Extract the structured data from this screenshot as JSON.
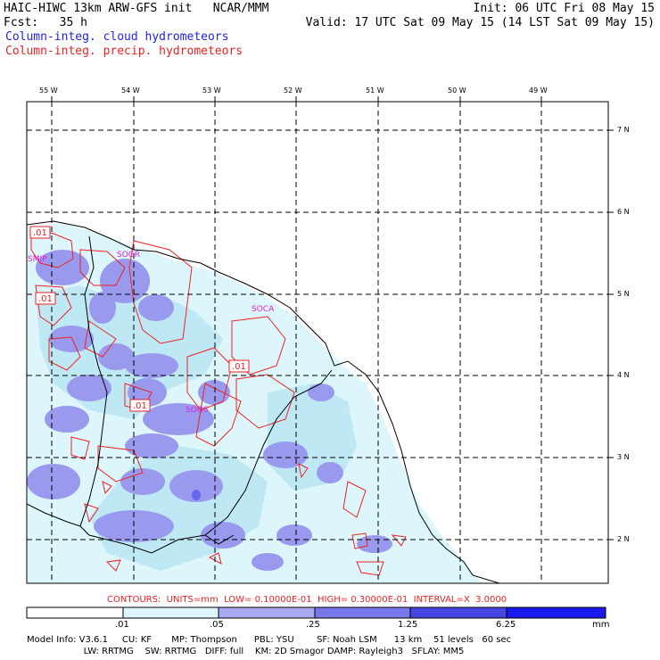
{
  "header": {
    "title": "HAIC-HIWC 13km ARW-GFS init   NCAR/MMM",
    "init": "Init: 06 UTC Fri 08 May 15",
    "fcst": "Fcst:   35 h",
    "valid": "Valid: 17 UTC Sat 09 May 15 (14 LST Sat 09 May 15)",
    "field1": "Column-integ. cloud hydrometeors",
    "field2": "Column-integ. precip. hydrometeors"
  },
  "colors": {
    "field1": "#2222ee",
    "field2": "#ee2222",
    "coast": "#000000",
    "contour": "#ee2222",
    "station": "#dd22dd",
    "shade_light": "#ddf6fb",
    "shade_mid": "#bfe8f5",
    "shade_purple": "#9999ee",
    "shade_dark": "#6666ee"
  },
  "map": {
    "lon_labels": [
      "55 W",
      "54 W",
      "53 W",
      "52 W",
      "51 W",
      "50 W",
      "49 W"
    ],
    "lat_labels": [
      "7 N",
      "6 N",
      "5 N",
      "4 N",
      "3 N",
      "2 N"
    ],
    "stations": [
      {
        "name": "SMJP",
        "lon": -54.96,
        "lat": 5.44
      },
      {
        "name": "SOGR",
        "lon": -53.99,
        "lat": 5.47
      },
      {
        "name": "SOCA",
        "lon": -52.36,
        "lat": 4.82
      },
      {
        "name": "SOOS",
        "lon": -53.14,
        "lat": 3.69
      }
    ],
    "contour_labels": [
      {
        "text": ".01",
        "lon": -55.11,
        "lat": 5.75
      },
      {
        "text": ".01",
        "lon": -54.91,
        "lat": 4.95
      },
      {
        "text": ".01",
        "lon": -52.65,
        "lat": 4.1
      },
      {
        "text": ".01",
        "lon": -54.06,
        "lat": 3.72
      }
    ]
  },
  "legend": {
    "contours": "CONTOURS:  UNITS=mm  LOW= 0.10000E-01  HIGH= 0.30000E-01  INTERVAL=X  3.0000",
    "ticks": [
      ".01",
      ".05",
      ".25",
      "1.25",
      "6.25"
    ],
    "units": "mm",
    "bin_colors": [
      "#ffffff",
      "#ddf6fb",
      "#a9a9f2",
      "#7777ea",
      "#4545e0",
      "#1a1aee"
    ]
  },
  "footer": {
    "line1": "Model Info: V3.6.1     CU: KF       MP: Thompson      PBL: YSU        SF: Noah LSM      13 km    51 levels   60 sec",
    "line2": "                    LW: RRTMG    SW: RRTMG   DIFF: full    KM: 2D Smagor DAMP: Rayleigh3   SFLAY: MM5"
  }
}
